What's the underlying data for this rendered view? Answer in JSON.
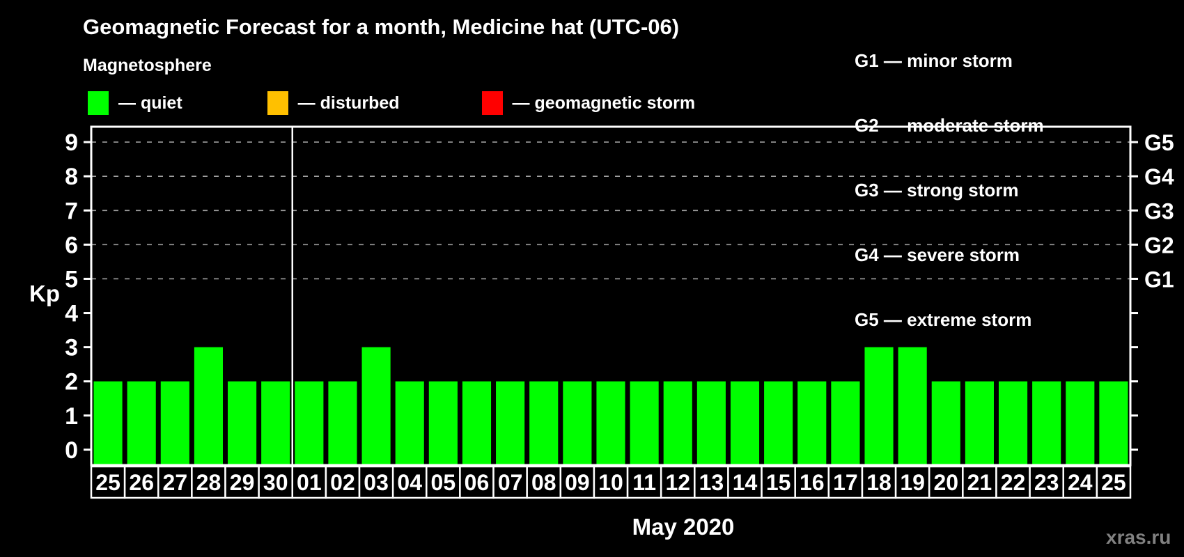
{
  "header": {
    "title": "Geomagnetic Forecast for a month, Medicine hat (UTC-06)",
    "subtitle": "Magnetosphere"
  },
  "legend": {
    "items": [
      {
        "label": "— quiet",
        "color": "#00ff00"
      },
      {
        "label": "— disturbed",
        "color": "#ffc000"
      },
      {
        "label": "— geomagnetic storm",
        "color": "#ff0000"
      }
    ]
  },
  "storm_scale": {
    "lines": [
      "G1 — minor storm",
      "G2 — moderate storm",
      "G3 — strong storm",
      "G4 — severe storm",
      "G5 — extreme storm"
    ]
  },
  "watermark": "xras.ru",
  "chart_data": {
    "type": "bar",
    "title": "Geomagnetic Forecast for a month, Medicine hat (UTC-06)",
    "ylabel": "Kp",
    "xlabel": "May 2020",
    "month_label": "May 2020",
    "categories": [
      "25",
      "26",
      "27",
      "28",
      "29",
      "30",
      "01",
      "02",
      "03",
      "04",
      "05",
      "06",
      "07",
      "08",
      "09",
      "10",
      "11",
      "12",
      "13",
      "14",
      "15",
      "16",
      "17",
      "18",
      "19",
      "20",
      "21",
      "22",
      "23",
      "24",
      "25"
    ],
    "values": [
      2,
      2,
      2,
      3,
      2,
      2,
      2,
      2,
      3,
      2,
      2,
      2,
      2,
      2,
      2,
      2,
      2,
      2,
      2,
      2,
      2,
      2,
      2,
      3,
      3,
      2,
      2,
      2,
      2,
      2,
      2
    ],
    "ylim": [
      0,
      9
    ],
    "y_ticks": [
      0,
      1,
      2,
      3,
      4,
      5,
      6,
      7,
      8,
      9
    ],
    "grid": true,
    "grid_levels": [
      5,
      6,
      7,
      8,
      9
    ],
    "right_axis_labels": [
      {
        "label": "G1",
        "kp": 5
      },
      {
        "label": "G2",
        "kp": 6
      },
      {
        "label": "G3",
        "kp": 7
      },
      {
        "label": "G4",
        "kp": 8
      },
      {
        "label": "G5",
        "kp": 9
      }
    ],
    "month_boundary_index": 6,
    "legend_position": "top",
    "colors": {
      "quiet": "#00ff00",
      "disturbed": "#ffc000",
      "storm": "#ff0000",
      "grid": "#9e9e9e",
      "axis": "#ffffff"
    }
  }
}
